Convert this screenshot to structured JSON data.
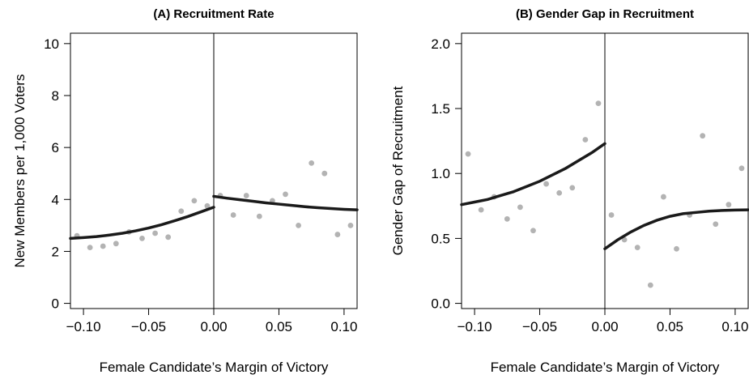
{
  "chart_data": [
    {
      "type": "scatter",
      "title": "(A) Recruitment Rate",
      "xlabel": "Female Candidate’s Margin of Victory",
      "ylabel": "New Members per 1,000 Voters",
      "xlim": [
        -0.11,
        0.11
      ],
      "ylim": [
        -0.2,
        10.4
      ],
      "xticks": [
        -0.1,
        -0.05,
        0.0,
        0.05,
        0.1
      ],
      "xtick_labels": [
        "−0.10",
        "−0.05",
        "0.00",
        "0.05",
        "0.10"
      ],
      "yticks": [
        0,
        2,
        4,
        6,
        8,
        10
      ],
      "ytick_labels": [
        "0",
        "2",
        "4",
        "6",
        "8",
        "10"
      ],
      "grid": false,
      "cutoff_line_x": 0,
      "series": [
        {
          "kind": "points",
          "color": "#b3b3b3",
          "x": [
            -0.105,
            -0.095,
            -0.085,
            -0.075,
            -0.065,
            -0.055,
            -0.045,
            -0.035,
            -0.025,
            -0.015,
            -0.005,
            0.005,
            0.015,
            0.025,
            0.035,
            0.045,
            0.055,
            0.065,
            0.075,
            0.085,
            0.095,
            0.105
          ],
          "y": [
            2.6,
            2.15,
            2.2,
            2.3,
            2.75,
            2.5,
            2.7,
            2.55,
            3.55,
            3.95,
            3.75,
            4.15,
            3.4,
            4.15,
            3.35,
            3.95,
            4.2,
            3.0,
            5.4,
            5.0,
            2.65,
            3.0
          ]
        },
        {
          "kind": "fit-left",
          "color": "#1a1a1a",
          "x": [
            -0.11,
            -0.1,
            -0.09,
            -0.08,
            -0.07,
            -0.06,
            -0.05,
            -0.04,
            -0.03,
            -0.02,
            -0.01,
            0.0
          ],
          "y": [
            2.5,
            2.53,
            2.57,
            2.63,
            2.7,
            2.79,
            2.9,
            3.03,
            3.18,
            3.34,
            3.52,
            3.7
          ]
        },
        {
          "kind": "fit-right",
          "color": "#1a1a1a",
          "x": [
            0.0,
            0.01,
            0.02,
            0.03,
            0.04,
            0.05,
            0.06,
            0.07,
            0.08,
            0.09,
            0.1,
            0.11
          ],
          "y": [
            4.12,
            4.05,
            3.99,
            3.93,
            3.87,
            3.82,
            3.77,
            3.72,
            3.68,
            3.65,
            3.62,
            3.6
          ]
        }
      ]
    },
    {
      "type": "scatter",
      "title": "(B) Gender Gap in Recruitment",
      "xlabel": "Female Candidate’s Margin of Victory",
      "ylabel": "Gender Gap of Recruitment",
      "xlim": [
        -0.11,
        0.11
      ],
      "ylim": [
        -0.04,
        2.08
      ],
      "xticks": [
        -0.1,
        -0.05,
        0.0,
        0.05,
        0.1
      ],
      "xtick_labels": [
        "−0.10",
        "−0.05",
        "0.00",
        "0.05",
        "0.10"
      ],
      "yticks": [
        0.0,
        0.5,
        1.0,
        1.5,
        2.0
      ],
      "ytick_labels": [
        "0.0",
        "0.5",
        "1.0",
        "1.5",
        "2.0"
      ],
      "grid": false,
      "cutoff_line_x": 0,
      "series": [
        {
          "kind": "points",
          "color": "#b3b3b3",
          "x": [
            -0.105,
            -0.095,
            -0.085,
            -0.075,
            -0.065,
            -0.055,
            -0.045,
            -0.035,
            -0.025,
            -0.015,
            -0.005,
            0.005,
            0.015,
            0.025,
            0.035,
            0.045,
            0.055,
            0.065,
            0.075,
            0.085,
            0.095,
            0.105
          ],
          "y": [
            1.15,
            0.72,
            0.82,
            0.65,
            0.74,
            0.56,
            0.92,
            0.85,
            0.89,
            1.26,
            1.54,
            0.68,
            0.49,
            0.43,
            0.14,
            0.82,
            0.42,
            0.68,
            1.29,
            0.61,
            0.76,
            1.04
          ]
        },
        {
          "kind": "fit-left",
          "color": "#1a1a1a",
          "x": [
            -0.11,
            -0.1,
            -0.09,
            -0.08,
            -0.07,
            -0.06,
            -0.05,
            -0.04,
            -0.03,
            -0.02,
            -0.01,
            0.0
          ],
          "y": [
            0.76,
            0.78,
            0.8,
            0.83,
            0.86,
            0.9,
            0.94,
            0.99,
            1.04,
            1.1,
            1.16,
            1.23
          ]
        },
        {
          "kind": "fit-right",
          "color": "#1a1a1a",
          "x": [
            0.0,
            0.01,
            0.02,
            0.03,
            0.04,
            0.05,
            0.06,
            0.07,
            0.08,
            0.09,
            0.1,
            0.11
          ],
          "y": [
            0.42,
            0.49,
            0.55,
            0.6,
            0.64,
            0.67,
            0.69,
            0.7,
            0.71,
            0.715,
            0.718,
            0.72
          ]
        }
      ]
    }
  ]
}
